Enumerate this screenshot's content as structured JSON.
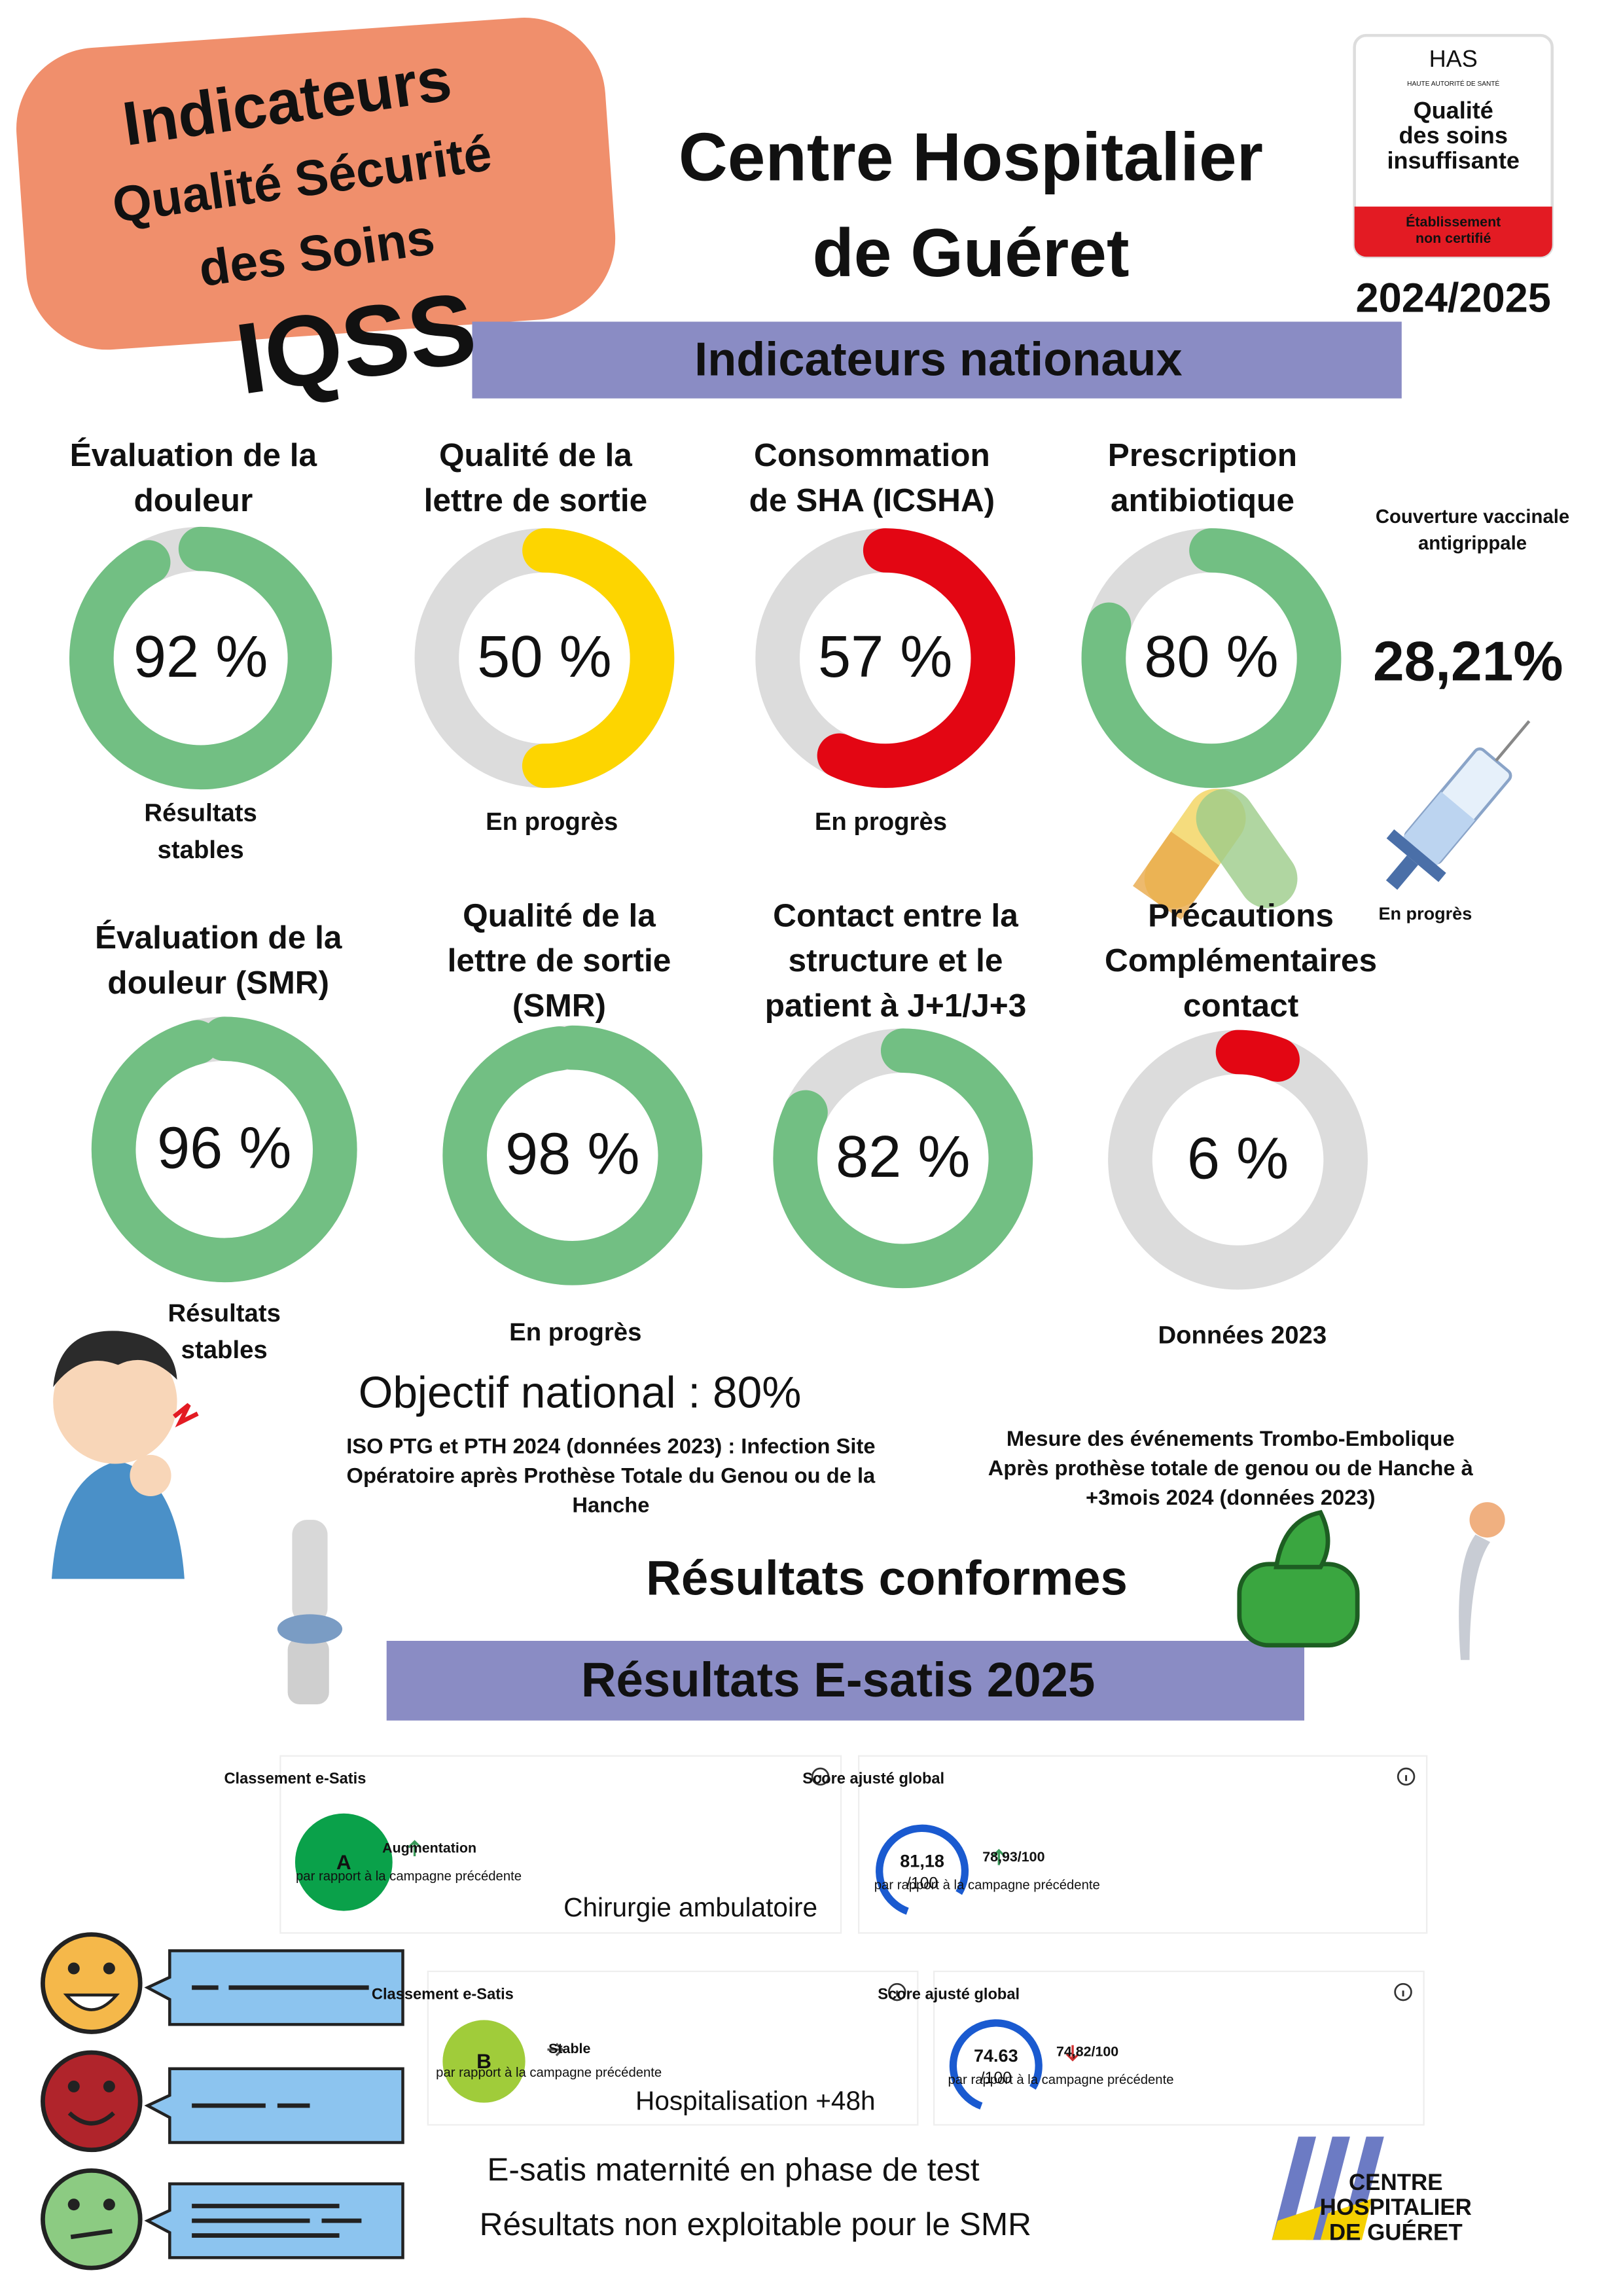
{
  "header": {
    "badge_lines": [
      "Indicateurs",
      "Qualité Sécurité",
      "des Soins"
    ],
    "acronym": "IQSS",
    "title_lines": [
      "Centre Hospitalier",
      "de Guéret"
    ],
    "year": "2024/2025"
  },
  "has_logo": {
    "name": "HAS",
    "subtitle": "HAUTE AUTORITÉ DE SANTÉ",
    "rating_lines": [
      "Qualité",
      "des soins",
      "insuffisante"
    ],
    "certification_lines": [
      "Établissement",
      "non certifié"
    ]
  },
  "national": {
    "heading": "Indicateurs nationaux",
    "indicators": [
      {
        "title": [
          "Évaluation de la",
          "douleur"
        ],
        "value": 92,
        "value_label": "92 %",
        "color": "#72bf83",
        "status": [
          "Résultats",
          "stables"
        ]
      },
      {
        "title": [
          "Qualité de la",
          "lettre de sortie"
        ],
        "value": 50,
        "value_label": "50 %",
        "color": "#fdd500",
        "status": [
          "En progrès"
        ]
      },
      {
        "title": [
          "Consommation",
          "de SHA (ICSHA)"
        ],
        "value": 57,
        "value_label": "57 %",
        "color": "#e30613",
        "status": [
          "En progrès"
        ]
      },
      {
        "title": [
          "Prescription",
          "antibiotique"
        ],
        "value": 80,
        "value_label": "80 %",
        "color": "#72bf83"
      },
      {
        "title": [
          "Évaluation de la",
          "douleur (SMR)"
        ],
        "value": 96,
        "value_label": "96 %",
        "color": "#72bf83",
        "status": [
          "Résultats",
          "stables"
        ]
      },
      {
        "title": [
          "Qualité de la",
          "lettre de sortie",
          "(SMR)"
        ],
        "value": 98,
        "value_label": "98 %",
        "color": "#72bf83",
        "status": [
          "En progrès"
        ]
      },
      {
        "title": [
          "Contact entre la",
          "structure et le",
          "patient à J+1/J+3"
        ],
        "value": 82,
        "value_label": "82 %",
        "color": "#72bf83"
      },
      {
        "title": [
          "Précautions",
          "Complémentaires",
          "contact"
        ],
        "value": 6,
        "value_label": "6 %",
        "color": "#e30613",
        "status": [
          "Données 2023"
        ]
      }
    ],
    "vaccination": {
      "label_lines": [
        "Couverture vaccinale",
        "antigrippale"
      ],
      "value": "28,21%",
      "status": "En progrès"
    },
    "objective": "Objectif national : 80%"
  },
  "conformity": {
    "iso_lines": [
      "ISO PTG et PTH 2024 (données 2023) : Infection Site",
      "Opératoire après Prothèse Totale du Genou  ou de la",
      "Hanche"
    ],
    "mte_lines": [
      "Mesure des événements Trombo-Embolique",
      "Après prothèse totale de genou ou de Hanche à",
      "+3mois 2024 (données 2023)"
    ],
    "result": "Résultats conformes"
  },
  "esatis": {
    "heading": "Résultats E-satis 2025",
    "panels": [
      {
        "rank_title": "Classement e-Satis",
        "grade": "A",
        "trend": "Augmentation",
        "comparison": "par rapport à la campagne précédente",
        "score_title": "Score ajusté global",
        "score": "81,18",
        "score_max": "/100",
        "previous": "78,93/100",
        "service": "Chirurgie ambulatoire"
      },
      {
        "rank_title": "Classement e-Satis",
        "grade": "B",
        "trend": "Stable",
        "comparison": "par rapport à la campagne précédente",
        "score_title": "Score ajusté global",
        "score": "74.63",
        "score_max": "/100",
        "previous": "74,82/100",
        "service": "Hospitalisation +48h"
      }
    ],
    "notes": [
      "E-satis maternité en phase de test",
      "Résultats non exploitable pour le SMR"
    ]
  },
  "footer_logo": [
    "CENTRE",
    "HOSPITALIER",
    "DE GUÉRET"
  ]
}
